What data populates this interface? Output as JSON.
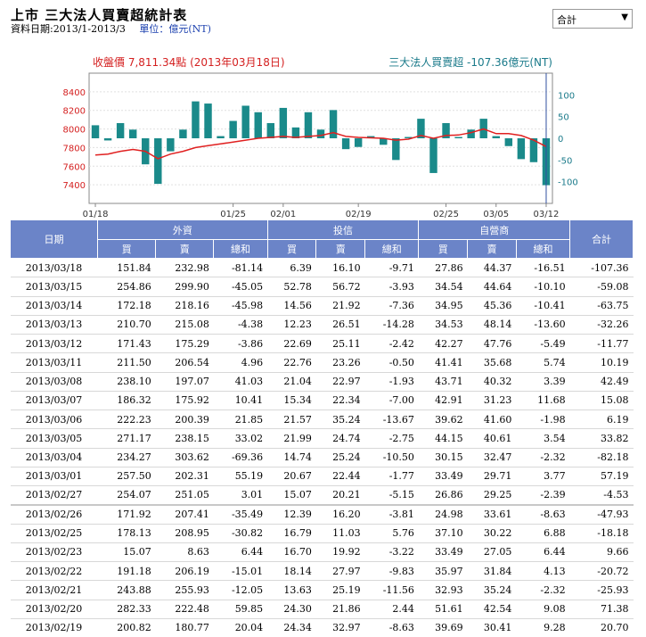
{
  "header": {
    "title": "上市 三大法人買賣超統計表",
    "period": "資料日期:2013/1-2013/3",
    "unit": "單位：億元(NT)"
  },
  "selector": {
    "value": "合計"
  },
  "chart_data": {
    "type": "bar",
    "left_title": "收盤價 7,811.34點 (2013年03月18日)",
    "right_title": "三大法人買賣超 -107.36億元(NT)",
    "x_labels": [
      "01/18",
      "01/25",
      "02/01",
      "02/19",
      "02/25",
      "03/05",
      "03/12"
    ],
    "left_axis": {
      "ticks": [
        7400,
        7600,
        7800,
        8000,
        8200,
        8400
      ],
      "range": [
        7200,
        8600
      ]
    },
    "right_axis": {
      "ticks": [
        -100,
        -50,
        0,
        50,
        100
      ],
      "range": [
        -150,
        150
      ]
    },
    "net_series": {
      "name": "三大法人買賣超",
      "color": "#1a8a8a",
      "values": [
        30,
        -5,
        35,
        20,
        -60,
        -105,
        -30,
        20,
        85,
        80,
        5,
        40,
        75,
        60,
        35,
        70,
        25,
        60,
        20,
        65,
        -25,
        -20,
        5,
        -15,
        -50,
        3,
        45,
        -80,
        35,
        3,
        20,
        45,
        5,
        -18,
        -48,
        -55,
        -108
      ]
    },
    "price_series": {
      "name": "收盤價",
      "color": "#e02020",
      "values": [
        7720,
        7730,
        7760,
        7780,
        7760,
        7680,
        7730,
        7760,
        7800,
        7820,
        7840,
        7860,
        7880,
        7900,
        7910,
        7920,
        7910,
        7920,
        7930,
        7960,
        7920,
        7910,
        7905,
        7900,
        7880,
        7890,
        7930,
        7900,
        7930,
        7935,
        7960,
        8000,
        7950,
        7950,
        7930,
        7880,
        7811
      ]
    }
  },
  "table": {
    "groups": [
      "日期",
      "外資",
      "投信",
      "自營商",
      "合計"
    ],
    "subs": [
      "買",
      "賣",
      "總和",
      "買",
      "賣",
      "總和",
      "買",
      "賣",
      "總和"
    ],
    "rows": [
      [
        "2013/03/18",
        "151.84",
        "232.98",
        "-81.14",
        "6.39",
        "16.10",
        "-9.71",
        "27.86",
        "44.37",
        "-16.51",
        "-107.36"
      ],
      [
        "2013/03/15",
        "254.86",
        "299.90",
        "-45.05",
        "52.78",
        "56.72",
        "-3.93",
        "34.54",
        "44.64",
        "-10.10",
        "-59.08"
      ],
      [
        "2013/03/14",
        "172.18",
        "218.16",
        "-45.98",
        "14.56",
        "21.92",
        "-7.36",
        "34.95",
        "45.36",
        "-10.41",
        "-63.75"
      ],
      [
        "2013/03/13",
        "210.70",
        "215.08",
        "-4.38",
        "12.23",
        "26.51",
        "-14.28",
        "34.53",
        "48.14",
        "-13.60",
        "-32.26"
      ],
      [
        "2013/03/12",
        "171.43",
        "175.29",
        "-3.86",
        "22.69",
        "25.11",
        "-2.42",
        "42.27",
        "47.76",
        "-5.49",
        "-11.77"
      ],
      [
        "2013/03/11",
        "211.50",
        "206.54",
        "4.96",
        "22.76",
        "23.26",
        "-0.50",
        "41.41",
        "35.68",
        "5.74",
        "10.19"
      ],
      [
        "2013/03/08",
        "238.10",
        "197.07",
        "41.03",
        "21.04",
        "22.97",
        "-1.93",
        "43.71",
        "40.32",
        "3.39",
        "42.49"
      ],
      [
        "2013/03/07",
        "186.32",
        "175.92",
        "10.41",
        "15.34",
        "22.34",
        "-7.00",
        "42.91",
        "31.23",
        "11.68",
        "15.08"
      ],
      [
        "2013/03/06",
        "222.23",
        "200.39",
        "21.85",
        "21.57",
        "35.24",
        "-13.67",
        "39.62",
        "41.60",
        "-1.98",
        "6.19"
      ],
      [
        "2013/03/05",
        "271.17",
        "238.15",
        "33.02",
        "21.99",
        "24.74",
        "-2.75",
        "44.15",
        "40.61",
        "3.54",
        "33.82"
      ],
      [
        "2013/03/04",
        "234.27",
        "303.62",
        "-69.36",
        "14.74",
        "25.24",
        "-10.50",
        "30.15",
        "32.47",
        "-2.32",
        "-82.18"
      ],
      [
        "2013/03/01",
        "257.50",
        "202.31",
        "55.19",
        "20.67",
        "22.44",
        "-1.77",
        "33.49",
        "29.71",
        "3.77",
        "57.19"
      ],
      [
        "2013/02/27",
        "254.07",
        "251.05",
        "3.01",
        "15.07",
        "20.21",
        "-5.15",
        "26.86",
        "29.25",
        "-2.39",
        "-4.53"
      ],
      [
        "2013/02/26",
        "171.92",
        "207.41",
        "-35.49",
        "12.39",
        "16.20",
        "-3.81",
        "24.98",
        "33.61",
        "-8.63",
        "-47.93"
      ],
      [
        "2013/02/25",
        "178.13",
        "208.95",
        "-30.82",
        "16.79",
        "11.03",
        "5.76",
        "37.10",
        "30.22",
        "6.88",
        "-18.18"
      ],
      [
        "2013/02/23",
        "15.07",
        "8.63",
        "6.44",
        "16.70",
        "19.92",
        "-3.22",
        "33.49",
        "27.05",
        "6.44",
        "9.66"
      ],
      [
        "2013/02/22",
        "191.18",
        "206.19",
        "-15.01",
        "18.14",
        "27.97",
        "-9.83",
        "35.97",
        "31.84",
        "4.13",
        "-20.72"
      ],
      [
        "2013/02/21",
        "243.88",
        "255.93",
        "-12.05",
        "13.63",
        "25.19",
        "-11.56",
        "32.93",
        "35.24",
        "-2.32",
        "-25.93"
      ],
      [
        "2013/02/20",
        "282.33",
        "222.48",
        "59.85",
        "24.30",
        "21.86",
        "2.44",
        "51.61",
        "42.54",
        "9.08",
        "71.38"
      ],
      [
        "2013/02/19",
        "200.82",
        "180.77",
        "20.04",
        "24.34",
        "32.97",
        "-8.63",
        "39.69",
        "30.41",
        "9.28",
        "20.70"
      ]
    ]
  }
}
